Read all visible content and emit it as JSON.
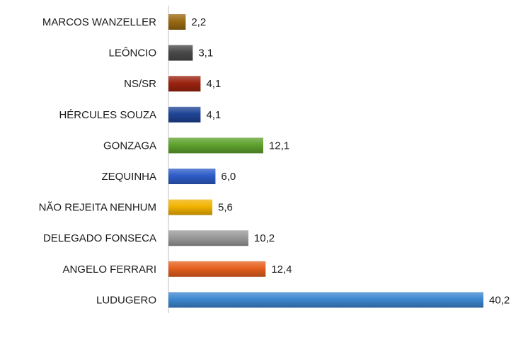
{
  "chart_data": {
    "type": "bar",
    "orientation": "horizontal",
    "categories": [
      "MARCOS WANZELLER",
      "LEÔNCIO",
      "NS/SR",
      "HÉRCULES SOUZA",
      "GONZAGA",
      "ZEQUINHA",
      "NÃO REJEITA NENHUM",
      "DELEGADO FONSECA",
      "ANGELO FERRARI",
      "LUDUGERO"
    ],
    "values": [
      2.2,
      3.1,
      4.1,
      4.1,
      12.1,
      6.0,
      5.6,
      10.2,
      12.4,
      40.2
    ],
    "value_labels": [
      "2,2",
      "3,1",
      "4,1",
      "4,1",
      "12,1",
      "6,0",
      "5,6",
      "10,2",
      "12,4",
      "40,2"
    ],
    "colors": [
      "#996a14",
      "#4a4a4a",
      "#9c2410",
      "#1f4596",
      "#5fa22e",
      "#2e5cc8",
      "#f2b200",
      "#999999",
      "#e5601e",
      "#3d87d0"
    ],
    "title": "",
    "xlabel": "",
    "ylabel": "",
    "xlim": [
      0,
      40.2
    ],
    "grid": false,
    "legend": "none"
  }
}
